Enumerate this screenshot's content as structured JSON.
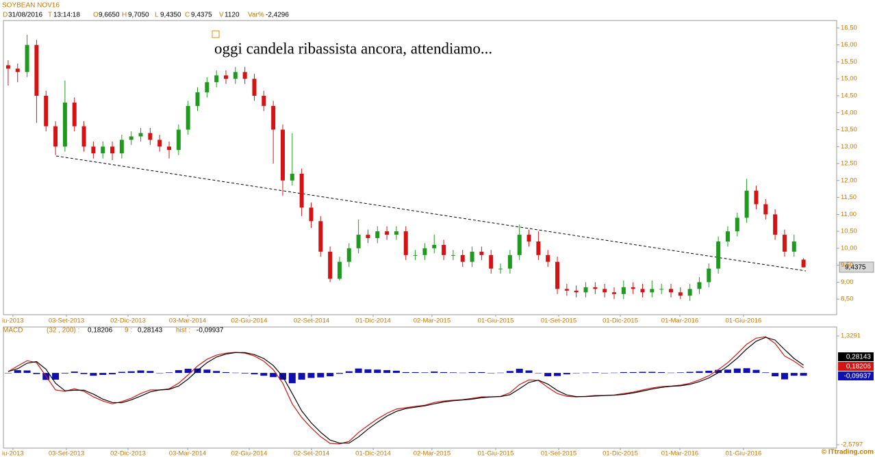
{
  "chart_data": [
    {
      "type": "candlestick",
      "title": "SOYBEAN NOV16",
      "info": [
        {
          "key": "D",
          "value": "31/08/2016"
        },
        {
          "key": "T",
          "value": "13:14:18"
        },
        {
          "key": "O",
          "value": "9,6650"
        },
        {
          "key": "H",
          "value": "9,7050"
        },
        {
          "key": "L",
          "value": "9,4350"
        },
        {
          "key": "C",
          "value": "9,4375"
        },
        {
          "key": "V",
          "value": "1120"
        },
        {
          "key": "Var%",
          "value": "-2,4296"
        }
      ],
      "annotation": "oggi candela ribassista ancora, attendiamo...",
      "last_price_label": "9,4375",
      "watermark": "© ITtrading.com",
      "up_color": "#1f9a1f",
      "down_color": "#d41414",
      "open": [
        15.4,
        15.3,
        15.2,
        16.0,
        14.5,
        13.6,
        13.0,
        14.3,
        13.6,
        13.0,
        12.8,
        13.0,
        12.8,
        13.2,
        13.3,
        13.4,
        13.2,
        13.0,
        12.9,
        13.5,
        14.2,
        14.6,
        14.9,
        15.1,
        15.0,
        15.2,
        15.0,
        14.5,
        14.2,
        13.5,
        12.0,
        12.2,
        11.2,
        10.8,
        9.9,
        9.1,
        9.6,
        10.0,
        10.4,
        10.3,
        10.5,
        10.4,
        10.5,
        9.8,
        9.8,
        10.0,
        10.1,
        9.8,
        9.8,
        9.6,
        9.9,
        9.8,
        9.4,
        9.4,
        9.8,
        10.4,
        10.2,
        9.8,
        9.6,
        8.8,
        8.75,
        8.7,
        8.85,
        8.8,
        8.7,
        8.65,
        8.85,
        8.8,
        8.7,
        8.8,
        8.8,
        8.7,
        8.6,
        8.8,
        9.0,
        9.4,
        10.2,
        10.5,
        10.9,
        11.7,
        11.3,
        11.0,
        10.4,
        9.9,
        9.665
      ],
      "high": [
        15.55,
        15.45,
        16.3,
        16.15,
        14.65,
        13.75,
        14.95,
        14.45,
        13.75,
        13.15,
        13.15,
        13.15,
        13.35,
        13.45,
        13.55,
        13.55,
        13.35,
        13.15,
        13.65,
        14.35,
        14.75,
        15.05,
        15.25,
        15.25,
        15.35,
        15.35,
        15.15,
        14.65,
        14.35,
        13.65,
        13.4,
        12.35,
        11.35,
        10.95,
        10.05,
        9.75,
        10.15,
        10.85,
        10.55,
        10.65,
        10.65,
        10.65,
        10.65,
        9.95,
        10.15,
        10.4,
        10.25,
        9.95,
        9.95,
        10.05,
        10.05,
        9.95,
        9.55,
        9.95,
        10.7,
        10.55,
        10.5,
        9.95,
        9.75,
        8.95,
        8.9,
        9.0,
        9.0,
        8.95,
        8.85,
        9.05,
        9.0,
        8.95,
        9.05,
        8.95,
        8.95,
        8.85,
        8.95,
        9.15,
        9.55,
        10.35,
        10.65,
        11.05,
        12.05,
        11.85,
        11.45,
        11.15,
        10.55,
        10.4,
        9.705
      ],
      "low": [
        14.8,
        14.9,
        15.05,
        13.7,
        13.45,
        12.75,
        12.85,
        13.45,
        12.85,
        12.65,
        12.65,
        12.6,
        12.65,
        13.05,
        13.15,
        13.05,
        12.85,
        12.65,
        12.75,
        13.35,
        14.05,
        14.45,
        14.75,
        14.85,
        14.85,
        14.85,
        14.35,
        14.05,
        12.5,
        11.55,
        11.85,
        10.95,
        10.6,
        9.75,
        9.0,
        9.05,
        9.45,
        9.85,
        10.15,
        10.15,
        10.25,
        10.25,
        9.65,
        9.65,
        9.65,
        9.85,
        9.65,
        9.65,
        9.45,
        9.45,
        9.65,
        9.25,
        9.25,
        9.25,
        9.65,
        10.05,
        9.65,
        9.45,
        8.65,
        8.6,
        8.55,
        8.55,
        8.65,
        8.55,
        8.5,
        8.5,
        8.65,
        8.55,
        8.55,
        8.65,
        8.55,
        8.5,
        8.45,
        8.65,
        8.85,
        9.25,
        10.05,
        10.35,
        10.75,
        11.15,
        10.85,
        10.25,
        9.75,
        9.75,
        9.435
      ],
      "close": [
        15.3,
        15.2,
        16.0,
        14.5,
        13.6,
        13.0,
        14.3,
        13.6,
        13.0,
        12.8,
        13.0,
        12.8,
        13.2,
        13.3,
        13.4,
        13.2,
        13.0,
        12.9,
        13.5,
        14.2,
        14.6,
        14.9,
        15.1,
        15.0,
        15.2,
        15.0,
        14.5,
        14.2,
        13.5,
        12.0,
        12.2,
        11.2,
        10.8,
        9.9,
        9.1,
        9.6,
        10.0,
        10.4,
        10.3,
        10.5,
        10.4,
        10.5,
        9.8,
        9.8,
        10.0,
        10.1,
        9.8,
        9.8,
        9.6,
        9.9,
        9.8,
        9.4,
        9.4,
        9.8,
        10.4,
        10.2,
        9.8,
        9.6,
        8.8,
        8.75,
        8.7,
        8.85,
        8.8,
        8.7,
        8.65,
        8.85,
        8.8,
        8.7,
        8.8,
        8.8,
        8.7,
        8.6,
        8.8,
        9.0,
        9.4,
        10.2,
        10.5,
        10.9,
        11.7,
        11.3,
        11.0,
        10.4,
        9.9,
        10.2,
        9.4375
      ],
      "xlim": [
        0,
        88
      ],
      "xticks": [
        {
          "value": 1.0,
          "label": "iu-2013"
        },
        {
          "value": 6.65,
          "label": "03-Set-2013"
        },
        {
          "value": 13.16,
          "label": "02-Dic-2013"
        },
        {
          "value": 19.45,
          "label": "03-Mar-2014"
        },
        {
          "value": 25.96,
          "label": "02-Giu-2014"
        },
        {
          "value": 32.54,
          "label": "02-Set-2014"
        },
        {
          "value": 39.05,
          "label": "01-Dic-2014"
        },
        {
          "value": 45.26,
          "label": "02-Mar-2015"
        },
        {
          "value": 51.99,
          "label": "01-Giu-2015"
        },
        {
          "value": 58.64,
          "label": "01-Set-2015"
        },
        {
          "value": 65.15,
          "label": "01-Dic-2015"
        },
        {
          "value": 71.44,
          "label": "01-Mar-2016"
        },
        {
          "value": 78.16,
          "label": "01-Giu-2016"
        }
      ],
      "ylim": [
        8.04,
        16.72
      ],
      "yticks": [
        {
          "value": 16.5,
          "label": "16,50"
        },
        {
          "value": 16.0,
          "label": "16,00"
        },
        {
          "value": 15.5,
          "label": "15,50"
        },
        {
          "value": 15.0,
          "label": "15,00"
        },
        {
          "value": 14.5,
          "label": "14,50"
        },
        {
          "value": 14.0,
          "label": "14,00"
        },
        {
          "value": 13.5,
          "label": "13,50"
        },
        {
          "value": 13.0,
          "label": "13,00"
        },
        {
          "value": 12.5,
          "label": "12,50"
        },
        {
          "value": 12.0,
          "label": "12,00"
        },
        {
          "value": 11.5,
          "label": "11,50"
        },
        {
          "value": 11.0,
          "label": "11,00"
        },
        {
          "value": 10.5,
          "label": "10,50"
        },
        {
          "value": 10.0,
          "label": "10,00"
        },
        {
          "value": 9.5,
          "label": "9,50"
        },
        {
          "value": 9.0,
          "label": "9,00"
        },
        {
          "value": 8.5,
          "label": "8,50"
        }
      ]
    },
    {
      "type": "macd",
      "title": "MACD",
      "params": "(32 , 200) :",
      "macd_label": "0,18206",
      "signal_name": "9 :",
      "signal_label": "0,28143",
      "hist_name": "hist :",
      "hist_label": "-0,09937",
      "ylim": [
        -2.7,
        1.65
      ],
      "yticks": [
        {
          "value": 1.3291,
          "label": "1,3291"
        },
        {
          "value": -2.5797,
          "label": "-2,5797"
        }
      ],
      "series": [
        {
          "color": "#d41414",
          "values": [
            0.05,
            0.25,
            0.44,
            0.37,
            -0.12,
            -0.61,
            -0.66,
            -0.57,
            -0.66,
            -0.86,
            -1.01,
            -1.11,
            -1.03,
            -0.91,
            -0.74,
            -0.61,
            -0.61,
            -0.57,
            -0.37,
            -0.07,
            0.25,
            0.49,
            0.64,
            0.71,
            0.74,
            0.71,
            0.61,
            0.42,
            0.12,
            -0.37,
            -1.11,
            -1.6,
            -1.97,
            -2.29,
            -2.53,
            -2.55,
            -2.46,
            -2.14,
            -1.89,
            -1.65,
            -1.45,
            -1.3,
            -1.25,
            -1.2,
            -1.16,
            -1.06,
            -1.01,
            -0.98,
            -0.96,
            -0.91,
            -0.86,
            -0.86,
            -0.84,
            -0.71,
            -0.42,
            -0.25,
            -0.27,
            -0.52,
            -0.74,
            -0.84,
            -0.86,
            -0.84,
            -0.81,
            -0.81,
            -0.79,
            -0.74,
            -0.69,
            -0.61,
            -0.54,
            -0.49,
            -0.47,
            -0.44,
            -0.37,
            -0.25,
            -0.1,
            0.12,
            0.37,
            0.69,
            1.03,
            1.25,
            1.3,
            1.06,
            0.61,
            0.42,
            0.18206
          ]
        },
        {
          "color": "#000000",
          "values": [
            0.05,
            0.15,
            0.35,
            0.41,
            0.13,
            -0.37,
            -0.64,
            -0.62,
            -0.62,
            -0.76,
            -0.94,
            -1.06,
            -1.07,
            -0.97,
            -0.83,
            -0.68,
            -0.61,
            -0.59,
            -0.47,
            -0.22,
            0.09,
            0.37,
            0.57,
            0.68,
            0.73,
            0.73,
            0.66,
            0.52,
            0.27,
            -0.13,
            -0.74,
            -1.36,
            -1.79,
            -2.13,
            -2.41,
            -2.52,
            -2.52,
            -2.3,
            -2.02,
            -1.77,
            -1.55,
            -1.38,
            -1.28,
            -1.23,
            -1.18,
            -1.11,
            -1.04,
            -1.0,
            -0.97,
            -0.94,
            -0.89,
            -0.86,
            -0.85,
            -0.78,
            -0.57,
            -0.34,
            -0.26,
            -0.4,
            -0.63,
            -0.79,
            -0.85,
            -0.85,
            -0.83,
            -0.81,
            -0.8,
            -0.77,
            -0.72,
            -0.65,
            -0.58,
            -0.52,
            -0.48,
            -0.46,
            -0.41,
            -0.31,
            -0.18,
            0.01,
            0.25,
            0.53,
            0.86,
            1.14,
            1.28,
            1.18,
            0.84,
            0.52,
            0.28143
          ]
        }
      ],
      "hist": {
        "color": "#1010b0",
        "values": [
          0,
          0.1,
          0.09,
          -0.04,
          -0.25,
          -0.24,
          -0.02,
          0.05,
          -0.04,
          -0.1,
          -0.07,
          -0.05,
          0.04,
          0.06,
          0.09,
          0.07,
          0,
          0.02,
          0.1,
          0.15,
          0.16,
          0.12,
          0.07,
          0.03,
          0.01,
          -0.02,
          -0.05,
          -0.1,
          -0.15,
          -0.24,
          -0.37,
          -0.24,
          -0.18,
          -0.16,
          -0.12,
          -0.03,
          0.06,
          0.16,
          0.13,
          0.12,
          0.1,
          0.08,
          0.03,
          0.03,
          0.02,
          0.05,
          0.03,
          0.02,
          0.01,
          0.03,
          0.03,
          0,
          0.01,
          0.07,
          0.15,
          0.09,
          -0.01,
          -0.12,
          -0.11,
          -0.05,
          -0.01,
          0.01,
          0.02,
          0,
          0.01,
          0.03,
          0.03,
          0.04,
          0.04,
          0.03,
          0.01,
          0.02,
          0.04,
          0.06,
          0.08,
          0.11,
          0.12,
          0.16,
          0.17,
          0.11,
          0.02,
          -0.12,
          -0.23,
          -0.1,
          -0.09937
        ]
      }
    }
  ]
}
